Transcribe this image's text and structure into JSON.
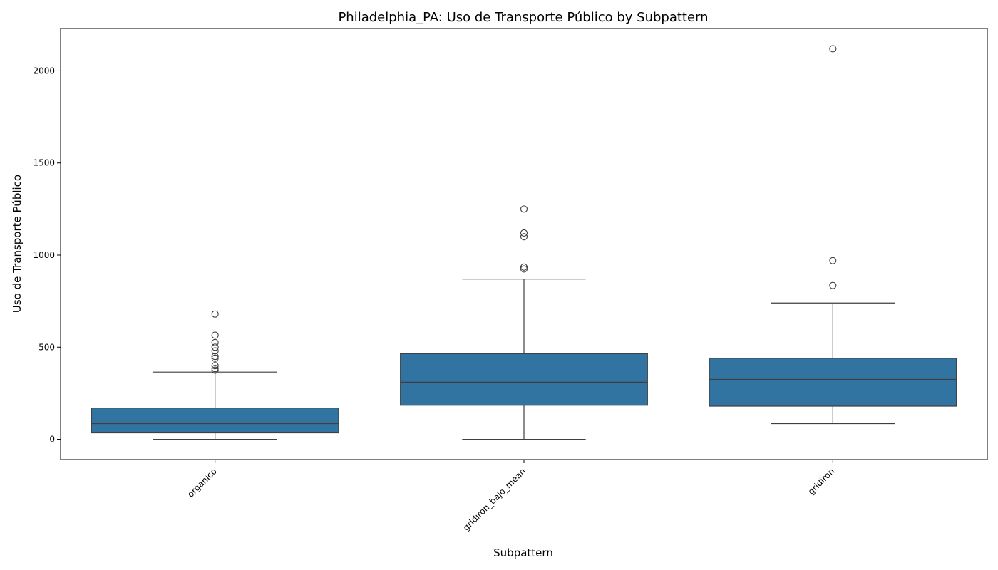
{
  "chart_data": {
    "type": "box",
    "title": "Philadelphia_PA: Uso de Transporte Público by Subpattern",
    "xlabel": "Subpattern",
    "ylabel": "Uso de Transporte Público",
    "ylim": [
      -110,
      2230
    ],
    "yticks": [
      0,
      500,
      1000,
      1500,
      2000
    ],
    "grid": false,
    "legend": "none",
    "box_color": "#3274a1",
    "line_color": "#3f3f3f",
    "categories": [
      "organico",
      "gridiron_bajo_mean",
      "gridiron"
    ],
    "boxes": [
      {
        "category": "organico",
        "whisker_low": 0,
        "q1": 35,
        "median": 85,
        "q3": 170,
        "whisker_high": 365,
        "outliers": [
          375,
          385,
          400,
          440,
          450,
          480,
          500,
          525,
          565,
          680
        ]
      },
      {
        "category": "gridiron_bajo_mean",
        "whisker_low": 0,
        "q1": 185,
        "median": 310,
        "q3": 465,
        "whisker_high": 870,
        "outliers": [
          925,
          935,
          1100,
          1120,
          1250
        ]
      },
      {
        "category": "gridiron",
        "whisker_low": 85,
        "q1": 180,
        "median": 325,
        "q3": 440,
        "whisker_high": 740,
        "outliers": [
          835,
          970,
          2120
        ]
      }
    ]
  }
}
